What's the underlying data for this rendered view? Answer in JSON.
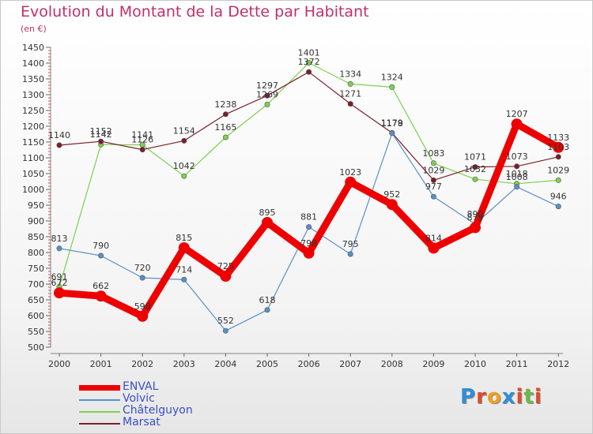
{
  "title": "Evolution du Montant de la Dette par Habitant",
  "subtitle": "(en €)",
  "logo": {
    "text": "Proxiti",
    "letters": [
      {
        "ch": "P",
        "color": "#2f8fd8"
      },
      {
        "ch": "r",
        "color": "#e04a2a"
      },
      {
        "ch": "o",
        "color": "#f0a020"
      },
      {
        "ch": "x",
        "color": "#2f8fd8"
      },
      {
        "ch": "i",
        "color": "#e04a2a"
      },
      {
        "ch": "t",
        "color": "#6cb84a"
      },
      {
        "ch": "i",
        "color": "#e04a2a"
      }
    ]
  },
  "chart_data": {
    "type": "line",
    "title": "Evolution du Montant de la Dette par Habitant",
    "subtitle": "(en €)",
    "x": [
      "2000",
      "2001",
      "2002",
      "2003",
      "2004",
      "2005",
      "2006",
      "2007",
      "2008",
      "2009",
      "2010",
      "2011",
      "2012"
    ],
    "ylim": [
      500,
      1450
    ],
    "yticks": [
      500,
      550,
      600,
      650,
      700,
      750,
      800,
      850,
      900,
      950,
      1000,
      1050,
      1100,
      1150,
      1200,
      1250,
      1300,
      1350,
      1400,
      1450
    ],
    "grid": false,
    "legend_position": "bottom-left",
    "series": [
      {
        "name": "ENVAL",
        "color": "#ee0000",
        "width": "thick",
        "values": [
          672,
          662,
          598,
          815,
          725,
          895,
          798,
          1023,
          952,
          814,
          879,
          1207,
          1133
        ]
      },
      {
        "name": "Volvic",
        "color": "#5b8fc8",
        "width": "thin",
        "values": [
          813,
          790,
          720,
          714,
          552,
          618,
          881,
          795,
          1178,
          977,
          890,
          1008,
          946
        ]
      },
      {
        "name": "Châtelguyon",
        "color": "#7dd050",
        "width": "thin",
        "values": [
          691,
          1142,
          1141,
          1042,
          1165,
          1269,
          1401,
          1334,
          1324,
          1083,
          1032,
          1018,
          1029
        ]
      },
      {
        "name": "Marsat",
        "color": "#7a1f2a",
        "width": "thin",
        "values": [
          1140,
          1152,
          1126,
          1154,
          1238,
          1297,
          1372,
          1271,
          1179,
          1029,
          1071,
          1073,
          1103
        ]
      }
    ]
  }
}
